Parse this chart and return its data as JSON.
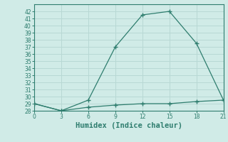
{
  "xlabel": "Humidex (Indice chaleur)",
  "x_upper": [
    0,
    3,
    6,
    9,
    12,
    15,
    18,
    21
  ],
  "y_upper": [
    29,
    28,
    29.5,
    37,
    41.5,
    42,
    37.5,
    29.5
  ],
  "x_lower": [
    0,
    3,
    6,
    9,
    12,
    15,
    18,
    21
  ],
  "y_lower": [
    29,
    28,
    28.5,
    28.8,
    29.0,
    29.0,
    29.3,
    29.5
  ],
  "line_color": "#2e7d6e",
  "bg_color": "#d0ebe7",
  "grid_color": "#b8d8d4",
  "ylim_min": 28,
  "ylim_max": 43,
  "xlim_min": 0,
  "xlim_max": 21,
  "yticks": [
    28,
    29,
    30,
    31,
    32,
    33,
    34,
    35,
    36,
    37,
    38,
    39,
    40,
    41,
    42
  ],
  "xticks": [
    0,
    3,
    6,
    9,
    12,
    15,
    18,
    21
  ],
  "tick_fontsize": 5.5,
  "xlabel_fontsize": 7.5
}
